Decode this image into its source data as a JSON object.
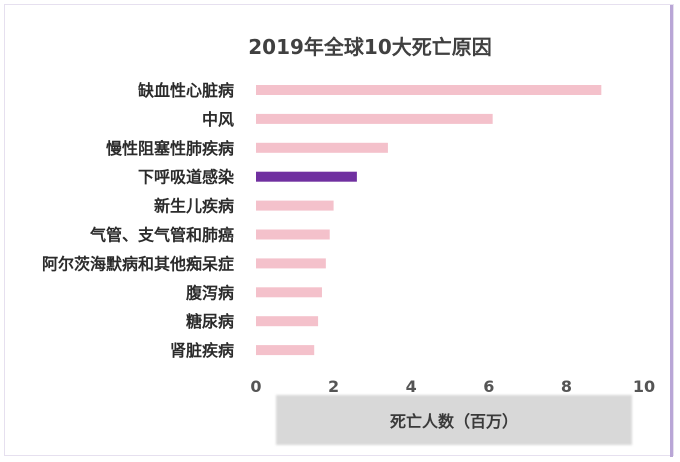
{
  "chart_data": {
    "type": "bar",
    "orientation": "horizontal",
    "title": "2019年全球10大死亡原因",
    "xlabel": "死亡人数（百万）",
    "ylabel": "",
    "xlim": [
      0,
      10
    ],
    "xticks": [
      "0",
      "2",
      "4",
      "6",
      "8",
      "10"
    ],
    "grid": false,
    "categories": [
      "缺血性心脏病",
      "中风",
      "慢性阻塞性肺疾病",
      "下呼吸道感染",
      "新生儿疾病",
      "气管、支气管和肺癌",
      "阿尔茨海默病和其他痴呆症",
      "腹泻病",
      "糖尿病",
      "肾脏疾病"
    ],
    "values": [
      8.9,
      6.1,
      3.4,
      2.6,
      2.0,
      1.9,
      1.8,
      1.7,
      1.6,
      1.5
    ],
    "bar_color": "#f4c1cb",
    "highlight_color": "#7030a0",
    "highlight_index": 3
  }
}
